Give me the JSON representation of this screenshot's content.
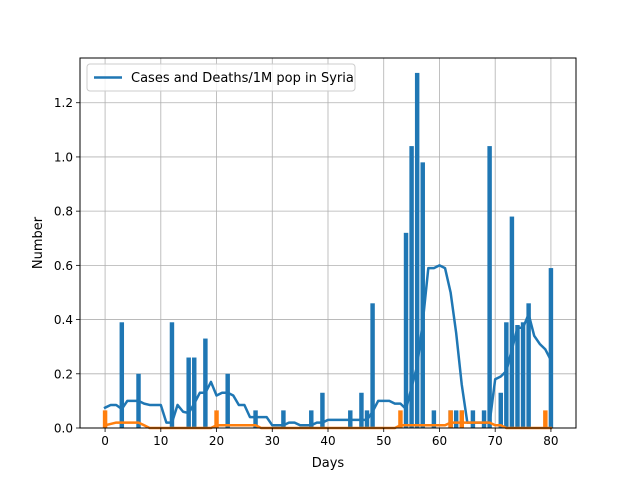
{
  "chart_data": {
    "type": "bar",
    "xlabel": "Days",
    "ylabel": "Number",
    "xlim": [
      -4.5,
      84.5
    ],
    "ylim": [
      0,
      1.365
    ],
    "xticks": [
      0,
      10,
      20,
      30,
      40,
      50,
      60,
      70,
      80
    ],
    "yticks": [
      0.0,
      0.2,
      0.4,
      0.6,
      0.8,
      1.0,
      1.2
    ],
    "xtick_labels": [
      "0",
      "10",
      "20",
      "30",
      "40",
      "50",
      "60",
      "70",
      "80"
    ],
    "ytick_labels": [
      "0.0",
      "0.2",
      "0.4",
      "0.6",
      "0.8",
      "1.0",
      "1.2"
    ],
    "grid": true,
    "legend": {
      "position": "top-left",
      "entries": [
        "Cases and Deaths/1M pop in Syria"
      ]
    },
    "bar_series": [
      {
        "color": "#1f77b4",
        "x": [
          3,
          6,
          12,
          15,
          16,
          18,
          22,
          27,
          32,
          37,
          39,
          44,
          46,
          47,
          48,
          54,
          55,
          56,
          57,
          59,
          62,
          63,
          64,
          66,
          68,
          69,
          71,
          72,
          73,
          74,
          75,
          76,
          80
        ],
        "values": [
          0.39,
          0.2,
          0.39,
          0.26,
          0.26,
          0.33,
          0.2,
          0.065,
          0.065,
          0.065,
          0.13,
          0.065,
          0.13,
          0.065,
          0.46,
          0.72,
          1.04,
          1.31,
          0.98,
          0.065,
          0.065,
          0.065,
          0.065,
          0.065,
          0.065,
          1.04,
          0.13,
          0.39,
          0.78,
          0.38,
          0.39,
          0.46,
          0.59
        ]
      },
      {
        "color": "#ff7f0e",
        "x": [
          0,
          20,
          53,
          62,
          64,
          79
        ],
        "values": [
          0.065,
          0.065,
          0.065,
          0.065,
          0.065,
          0.065
        ]
      }
    ],
    "series": [
      {
        "name": "Cases and Deaths/1M pop in Syria",
        "color": "#1f77b4",
        "x": [
          0,
          1,
          2,
          3,
          4,
          5,
          6,
          7,
          8,
          9,
          10,
          11,
          12,
          13,
          14,
          15,
          16,
          17,
          18,
          19,
          20,
          21,
          22,
          23,
          24,
          25,
          26,
          27,
          28,
          29,
          30,
          31,
          32,
          33,
          34,
          35,
          36,
          37,
          38,
          39,
          40,
          41,
          42,
          43,
          44,
          45,
          46,
          47,
          48,
          49,
          50,
          51,
          52,
          53,
          54,
          55,
          56,
          57,
          58,
          59,
          60,
          61,
          62,
          63,
          64,
          65,
          66,
          67,
          68,
          69,
          70,
          71,
          72,
          73,
          74,
          75,
          76,
          77,
          78,
          79,
          80
        ],
        "values": [
          0.075,
          0.085,
          0.085,
          0.07,
          0.1,
          0.1,
          0.1,
          0.09,
          0.085,
          0.085,
          0.085,
          0.02,
          0.02,
          0.085,
          0.06,
          0.055,
          0.09,
          0.13,
          0.13,
          0.17,
          0.12,
          0.13,
          0.13,
          0.12,
          0.085,
          0.085,
          0.04,
          0.04,
          0.04,
          0.04,
          0.01,
          0.01,
          0.01,
          0.02,
          0.02,
          0.01,
          0.01,
          0.01,
          0.02,
          0.02,
          0.03,
          0.03,
          0.03,
          0.03,
          0.03,
          0.03,
          0.03,
          0.03,
          0.06,
          0.1,
          0.1,
          0.1,
          0.09,
          0.09,
          0.07,
          0.15,
          0.23,
          0.39,
          0.59,
          0.59,
          0.6,
          0.59,
          0.5,
          0.35,
          0.16,
          0.02,
          0.02,
          0.02,
          0.02,
          0.02,
          0.18,
          0.19,
          0.21,
          0.29,
          0.37,
          0.37,
          0.42,
          0.34,
          0.31,
          0.29,
          0.25
        ]
      },
      {
        "color": "#ff7f0e",
        "x": [
          0,
          1,
          2,
          3,
          4,
          5,
          6,
          7,
          8,
          9,
          10,
          11,
          12,
          13,
          14,
          15,
          16,
          17,
          18,
          19,
          20,
          21,
          22,
          23,
          24,
          25,
          26,
          27,
          28,
          29,
          30,
          31,
          32,
          33,
          34,
          35,
          36,
          37,
          38,
          39,
          40,
          41,
          42,
          43,
          44,
          45,
          46,
          47,
          48,
          49,
          50,
          51,
          52,
          53,
          54,
          55,
          56,
          57,
          58,
          59,
          60,
          61,
          62,
          63,
          64,
          65,
          66,
          67,
          68,
          69,
          70,
          71,
          72,
          73,
          74,
          75,
          76,
          77,
          78,
          79,
          80
        ],
        "values": [
          0.01,
          0.015,
          0.02,
          0.02,
          0.02,
          0.02,
          0.02,
          0.01,
          0.0,
          0.0,
          0.0,
          0.0,
          0.0,
          0.0,
          0.0,
          0.0,
          0.0,
          0.0,
          0.0,
          0.0,
          0.01,
          0.01,
          0.01,
          0.01,
          0.01,
          0.01,
          0.01,
          0.01,
          0.0,
          0.0,
          0.0,
          0.0,
          0.0,
          0.0,
          0.0,
          0.0,
          0.0,
          0.0,
          0.0,
          0.0,
          0.0,
          0.0,
          0.0,
          0.0,
          0.0,
          0.0,
          0.0,
          0.0,
          0.0,
          0.0,
          0.0,
          0.0,
          0.0,
          0.01,
          0.01,
          0.01,
          0.01,
          0.01,
          0.01,
          0.01,
          0.01,
          0.01,
          0.02,
          0.02,
          0.02,
          0.02,
          0.02,
          0.02,
          0.02,
          0.02,
          0.01,
          0.01,
          0.0,
          0.0,
          0.0,
          0.0,
          0.0,
          0.0,
          0.0,
          0.0,
          0.0
        ]
      }
    ]
  }
}
